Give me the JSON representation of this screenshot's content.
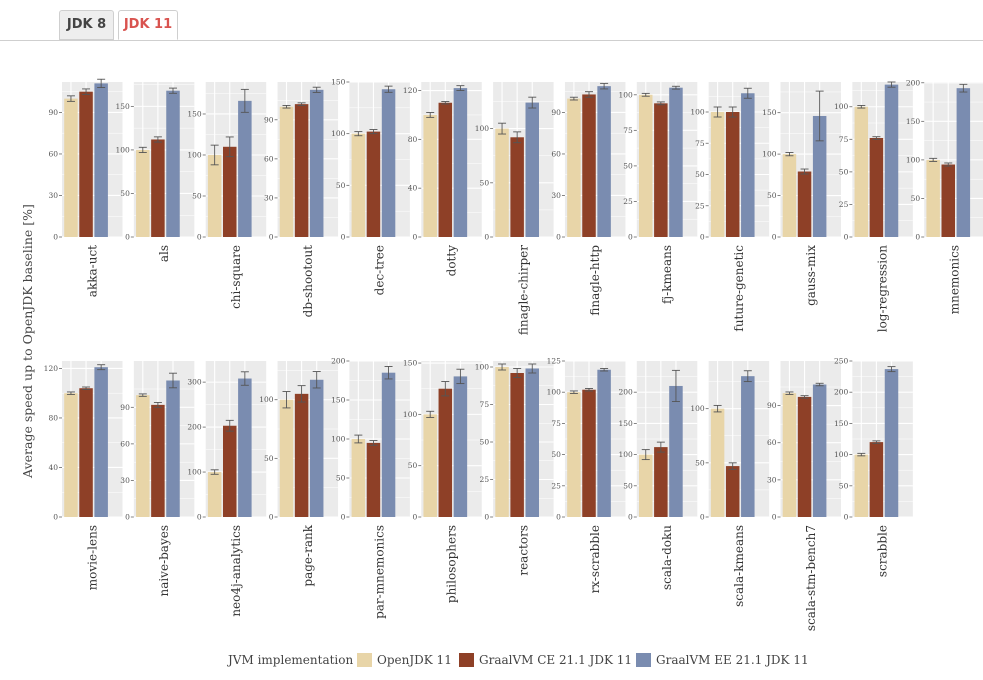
{
  "tabs": [
    {
      "label": "JDK 8",
      "active": false
    },
    {
      "label": "JDK 11",
      "active": true
    }
  ],
  "colors": {
    "openjdk": "#e8d5a8",
    "graal_ce": "#8e4027",
    "graal_ee": "#7a8cb0",
    "panel_bg": "#ebebeb",
    "grid": "#ffffff",
    "tab_active": "#d9534f"
  },
  "chart_data": {
    "type": "bar",
    "ylabel": "Average speed up to OpenJDK baseline [%]",
    "legend": {
      "title": "JVM implementation",
      "position": "bottom",
      "entries": [
        "OpenJDK 11",
        "GraalVM CE 21.1 JDK 11",
        "GraalVM EE 21.1 JDK 11"
      ]
    },
    "grid": true,
    "facets": [
      {
        "name": "akka-uct",
        "ylim": [
          0,
          112
        ],
        "ticks": [
          0,
          30,
          60,
          90
        ],
        "values": [
          100,
          105,
          111
        ],
        "errors": [
          2,
          2,
          3
        ]
      },
      {
        "name": "als",
        "ylim": [
          0,
          178
        ],
        "ticks": [
          0,
          50,
          100,
          150
        ],
        "values": [
          100,
          112,
          168
        ],
        "errors": [
          3,
          3,
          3
        ]
      },
      {
        "name": "chi-square",
        "ylim": [
          0,
          189
        ],
        "ticks": [
          0,
          50,
          100,
          150
        ],
        "values": [
          100,
          110,
          166
        ],
        "errors": [
          12,
          12,
          14
        ]
      },
      {
        "name": "db-shootout",
        "ylim": [
          0,
          119
        ],
        "ticks": [
          0,
          30,
          60,
          90
        ],
        "values": [
          100,
          102,
          113
        ],
        "errors": [
          1,
          1,
          2
        ]
      },
      {
        "name": "dec-tree",
        "ylim": [
          0,
          150
        ],
        "ticks": [
          0,
          50,
          100,
          150
        ],
        "values": [
          100,
          102,
          143
        ],
        "errors": [
          2,
          2,
          3
        ]
      },
      {
        "name": "dotty",
        "ylim": [
          0,
          127
        ],
        "ticks": [
          0,
          40,
          80,
          120
        ],
        "values": [
          100,
          110,
          122
        ],
        "errors": [
          2,
          1,
          2
        ]
      },
      {
        "name": "finagle-chirper",
        "ylim": [
          0,
          143
        ],
        "ticks": [
          0,
          50,
          100
        ],
        "values": [
          100,
          92,
          124
        ],
        "errors": [
          5,
          5,
          5
        ]
      },
      {
        "name": "finagle-http",
        "ylim": [
          0,
          112
        ],
        "ticks": [
          0,
          30,
          60,
          90
        ],
        "values": [
          100,
          103,
          109
        ],
        "errors": [
          1,
          2,
          2
        ]
      },
      {
        "name": "fj-kmeans",
        "ylim": [
          0,
          109
        ],
        "ticks": [
          0,
          25,
          50,
          75,
          100
        ],
        "values": [
          100,
          94,
          105
        ],
        "errors": [
          1,
          1,
          1
        ]
      },
      {
        "name": "future-genetic",
        "ylim": [
          0,
          124
        ],
        "ticks": [
          0,
          25,
          50,
          75,
          100
        ],
        "values": [
          100,
          100,
          115
        ],
        "errors": [
          4,
          4,
          4
        ]
      },
      {
        "name": "gauss-mix",
        "ylim": [
          0,
          187
        ],
        "ticks": [
          0,
          50,
          100,
          150
        ],
        "values": [
          100,
          79,
          146
        ],
        "errors": [
          2,
          3,
          30
        ]
      },
      {
        "name": "log-regression",
        "ylim": [
          0,
          119
        ],
        "ticks": [
          0,
          25,
          50,
          75,
          100
        ],
        "values": [
          100,
          76,
          117
        ],
        "errors": [
          1,
          1,
          2
        ]
      },
      {
        "name": "mnemonics",
        "ylim": [
          0,
          201
        ],
        "ticks": [
          0,
          50,
          100,
          150,
          200
        ],
        "values": [
          100,
          94,
          193
        ],
        "errors": [
          2,
          2,
          5
        ]
      },
      {
        "name": "movie-lens",
        "ylim": [
          0,
          126
        ],
        "ticks": [
          0,
          40,
          80,
          120
        ],
        "values": [
          100,
          104,
          121
        ],
        "errors": [
          1,
          1,
          2
        ]
      },
      {
        "name": "naive-bayes",
        "ylim": [
          0,
          128
        ],
        "ticks": [
          0,
          30,
          60,
          90
        ],
        "values": [
          100,
          92,
          112
        ],
        "errors": [
          1,
          2,
          6
        ]
      },
      {
        "name": "neo4j-analytics",
        "ylim": [
          0,
          347
        ],
        "ticks": [
          0,
          100,
          200,
          300
        ],
        "values": [
          100,
          203,
          308
        ],
        "errors": [
          5,
          12,
          15
        ]
      },
      {
        "name": "page-rank",
        "ylim": [
          0,
          133
        ],
        "ticks": [
          0,
          50,
          100
        ],
        "values": [
          100,
          105,
          117
        ],
        "errors": [
          7,
          7,
          7
        ]
      },
      {
        "name": "par-mnemonics",
        "ylim": [
          0,
          200
        ],
        "ticks": [
          0,
          50,
          100,
          150,
          200
        ],
        "values": [
          100,
          95,
          185
        ],
        "errors": [
          5,
          3,
          8
        ]
      },
      {
        "name": "philosophers",
        "ylim": [
          0,
          152
        ],
        "ticks": [
          0,
          50,
          100,
          150
        ],
        "values": [
          100,
          125,
          137
        ],
        "errors": [
          3,
          7,
          7
        ]
      },
      {
        "name": "reactors",
        "ylim": [
          0,
          104
        ],
        "ticks": [
          0,
          25,
          50,
          75,
          100
        ],
        "values": [
          100,
          96,
          99
        ],
        "errors": [
          2,
          3,
          3
        ]
      },
      {
        "name": "rx-scrabble",
        "ylim": [
          0,
          125
        ],
        "ticks": [
          0,
          25,
          50,
          75,
          100,
          125
        ],
        "values": [
          100,
          102,
          118
        ],
        "errors": [
          1,
          1,
          1
        ]
      },
      {
        "name": "scala-doku",
        "ylim": [
          0,
          250
        ],
        "ticks": [
          0,
          50,
          100,
          150,
          200
        ],
        "values": [
          100,
          112,
          210
        ],
        "errors": [
          8,
          8,
          25
        ]
      },
      {
        "name": "scala-kmeans",
        "ylim": [
          0,
          144
        ],
        "ticks": [
          0,
          50,
          100
        ],
        "values": [
          100,
          47,
          130
        ],
        "errors": [
          3,
          3,
          5
        ]
      },
      {
        "name": "scala-stm-bench7",
        "ylim": [
          0,
          126
        ],
        "ticks": [
          0,
          30,
          60,
          90
        ],
        "values": [
          100,
          97,
          107
        ],
        "errors": [
          1,
          1,
          1
        ]
      },
      {
        "name": "scrabble",
        "ylim": [
          0,
          250
        ],
        "ticks": [
          0,
          50,
          100,
          150,
          200,
          250
        ],
        "values": [
          100,
          120,
          237
        ],
        "errors": [
          2,
          2,
          4
        ]
      }
    ]
  }
}
